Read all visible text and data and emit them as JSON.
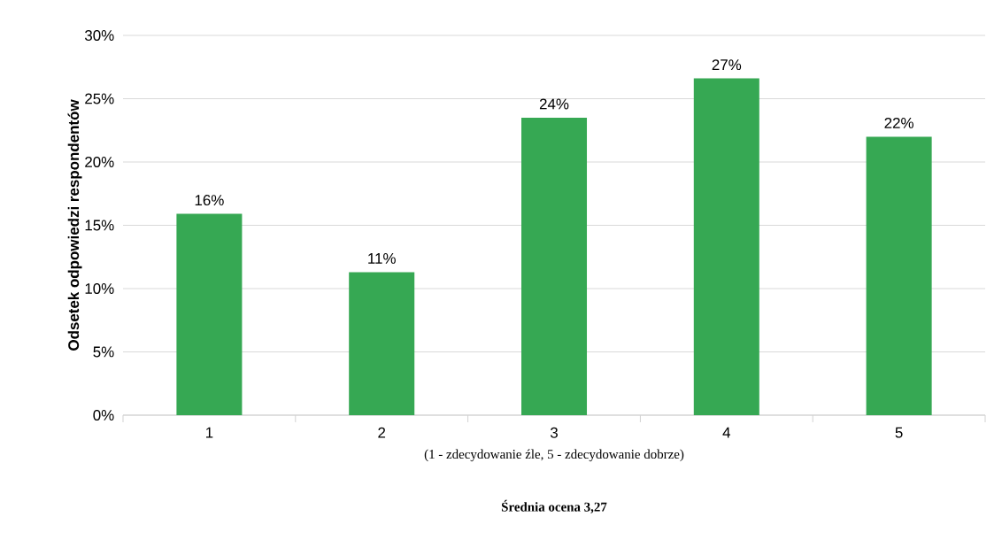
{
  "chart_data": {
    "type": "bar",
    "xlabel": "(1 - zdecydowanie źle, 5 - zdecydowanie dobrze)",
    "ylabel": "Odsetek odpowiedzi respondentów",
    "annotations": [
      "Średnia ocena 3,27"
    ],
    "categories": [
      "1",
      "2",
      "3",
      "4",
      "5"
    ],
    "values": [
      15.9,
      11.3,
      23.5,
      26.6,
      22.0
    ],
    "value_labels": [
      "16%",
      "11%",
      "24%",
      "27%",
      "22%"
    ],
    "color": "#36a853",
    "ylim": [
      0,
      30
    ],
    "yticks": [
      {
        "value": 0,
        "label": "0%"
      },
      {
        "value": 5,
        "label": "5%"
      },
      {
        "value": 10,
        "label": "10%"
      },
      {
        "value": 15,
        "label": "15%"
      },
      {
        "value": 20,
        "label": "20%"
      },
      {
        "value": 25,
        "label": "25%"
      },
      {
        "value": 30,
        "label": "30%"
      }
    ],
    "grid": "y"
  }
}
